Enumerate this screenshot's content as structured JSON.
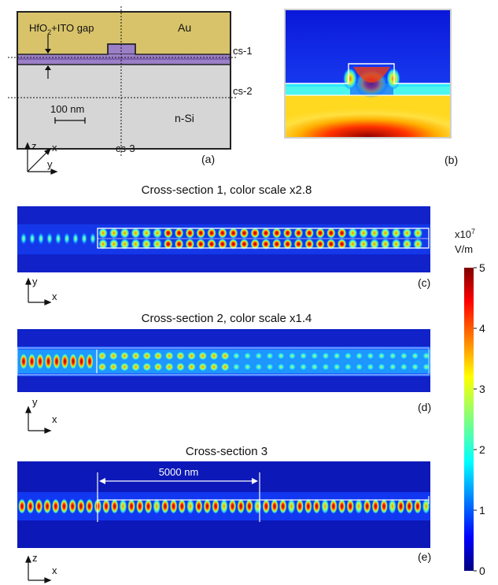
{
  "panel_a": {
    "gap_label_main": "HfO",
    "gap_label_sub": "2",
    "gap_label_rest": "+ITO gap",
    "au_label": "Au",
    "si_label": "n-Si",
    "scale_bar_label": "100 nm",
    "cs1_label": "cs-1",
    "cs2_label": "cs-2",
    "cs3_label": "cs-3",
    "axis_z": "z",
    "axis_x": "x",
    "axis_y": "y",
    "panel_letter": "(a)",
    "colors": {
      "au": "#d8c36a",
      "si": "#d6d6d6",
      "gap": "#9b7fc7",
      "outline": "#222222"
    }
  },
  "panel_b": {
    "panel_letter": "(b)"
  },
  "panel_c": {
    "title": "Cross-section 1, color scale x2.8",
    "axis_v": "y",
    "axis_h": "x",
    "panel_letter": "(c)"
  },
  "panel_d": {
    "title": "Cross-section 2, color scale x1.4",
    "axis_v": "y",
    "axis_h": "x",
    "panel_letter": "(d)"
  },
  "panel_e": {
    "title": "Cross-section 3",
    "dimension_label": "5000 nm",
    "axis_v": "z",
    "axis_h": "x",
    "panel_letter": "(e)"
  },
  "colorbar": {
    "unit_base": "x10",
    "unit_exp": "7",
    "unit": "V/m",
    "ticks": [
      "5",
      "4",
      "3",
      "2",
      "1",
      "0"
    ],
    "colors": {
      "low": "#00007f",
      "high": "#7f0000"
    }
  }
}
